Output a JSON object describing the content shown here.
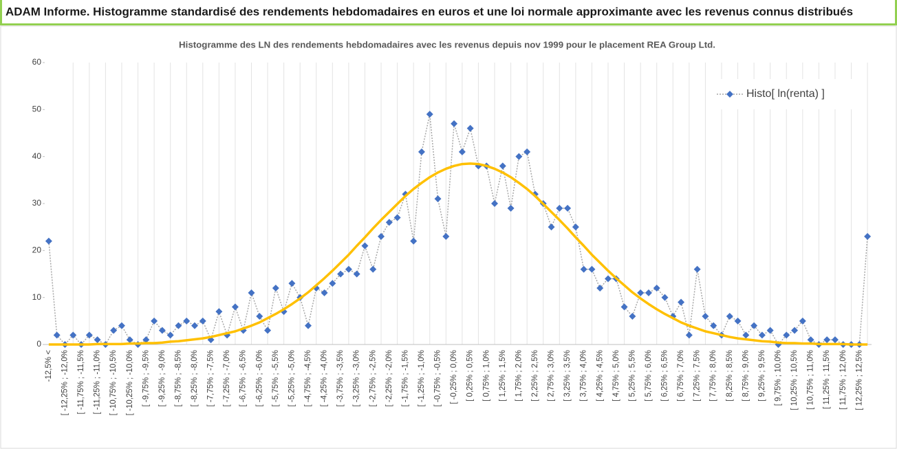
{
  "header": {
    "title": "ADAM Informe. Histogramme standardisé des rendements hebdomadaires en euros et une loi normale approximante avec les revenus connus distribués"
  },
  "chart_data": {
    "type": "line",
    "title": "Histogramme des LN des rendements hebdomadaires avec les revenus depuis nov 1999 pour le placement REA Group Ltd.",
    "categories": [
      "-12,5% <",
      null,
      "[ -12,25% ; -12,0%",
      null,
      "[ -11,75% ; -11,5%",
      null,
      "[ -11,25% ; -11,0%",
      null,
      "[ -10,75% ; -10,5%",
      null,
      "[ -10,25% ; -10,0%",
      null,
      "[ -9,75% ; -9,5%",
      null,
      "[ -9,25% ; -9,0%",
      null,
      "[ -8,75% ; -8,5%",
      null,
      "[ -8,25% ; -8,0%",
      null,
      "[ -7,75% ; -7,5%",
      null,
      "[ -7,25% ; -7,0%",
      null,
      "[ -6,75% ; -6,5%",
      null,
      "[ -6,25% ; -6,0%",
      null,
      "[ -5,75% ; -5,5%",
      null,
      "[ -5,25% ; -5,0%",
      null,
      "[ -4,75% ; -4,5%",
      null,
      "[ -4,25% ; -4,0%",
      null,
      "[ -3,75% ; -3,5%",
      null,
      "[ -3,25% ; -3,0%",
      null,
      "[ -2,75% ; -2,5%",
      null,
      "[ -2,25% ; -2,0%",
      null,
      "[ -1,75% ; -1,5%",
      null,
      "[ -1,25% ; -1,0%",
      null,
      "[ -0,75% ; -0,5%",
      null,
      "[ -0,25% ; 0,0%",
      null,
      "[ 0,25% ; 0,5%",
      null,
      "[ 0,75% ; 1,0%",
      null,
      "[ 1,25% ; 1,5%",
      null,
      "[ 1,75% ; 2,0%",
      null,
      "[ 2,25% ; 2,5%",
      null,
      "[ 2,75% ; 3,0%",
      null,
      "[ 3,25% ; 3,5%",
      null,
      "[ 3,75% ; 4,0%",
      null,
      "[ 4,25% ; 4,5%",
      null,
      "[ 4,75% ; 5,0%",
      null,
      "[ 5,25% ; 5,5%",
      null,
      "[ 5,75% ; 6,0%",
      null,
      "[ 6,25% ; 6,5%",
      null,
      "[ 6,75% ; 7,0%",
      null,
      "[ 7,25% ; 7,5%",
      null,
      "[ 7,75% ; 8,0%",
      null,
      "[ 8,25% ; 8,5%",
      null,
      "[ 8,75% ; 9,0%",
      null,
      "[ 9,25% ; 9,5%",
      null,
      "[ 9,75% ; 10,0%",
      null,
      "[ 10,25% ; 10,5%",
      null,
      "[ 10,75% ; 11,0%",
      null,
      "[ 11,25% ; 11,5%",
      null,
      "[ 11,75% ; 12,0%",
      null,
      "[ 12,25% ; 12,5%",
      null
    ],
    "series": [
      {
        "name": "Histo[ ln(renta) ]",
        "color": "#4472c4",
        "values": [
          22,
          2,
          0,
          2,
          0,
          2,
          1,
          0,
          3,
          4,
          1,
          0,
          1,
          5,
          3,
          2,
          4,
          5,
          4,
          5,
          1,
          7,
          2,
          8,
          3,
          11,
          6,
          3,
          12,
          7,
          13,
          10,
          4,
          12,
          11,
          13,
          15,
          16,
          15,
          21,
          16,
          23,
          26,
          27,
          32,
          22,
          41,
          49,
          31,
          23,
          47,
          41,
          46,
          38,
          38,
          30,
          38,
          29,
          40,
          41,
          32,
          30,
          25,
          29,
          29,
          25,
          16,
          16,
          12,
          14,
          14,
          8,
          6,
          11,
          11,
          12,
          10,
          6,
          9,
          2,
          16,
          6,
          4,
          2,
          6,
          5,
          2,
          4,
          2,
          3,
          0,
          2,
          3,
          5,
          1,
          0,
          1,
          1,
          0,
          0,
          0,
          23
        ]
      },
      {
        "color": "#ffc000",
        "values": [
          0,
          0,
          0,
          0,
          0,
          0,
          0.1,
          0.1,
          0.1,
          0.1,
          0.2,
          0.2,
          0.3,
          0.3,
          0.4,
          0.6,
          0.7,
          0.9,
          1.1,
          1.3,
          1.6,
          2.0,
          2.4,
          2.8,
          3.4,
          4.0,
          4.7,
          5.6,
          6.5,
          7.5,
          8.6,
          9.8,
          11.1,
          12.6,
          14.1,
          15.7,
          17.4,
          19.1,
          21.0,
          22.8,
          24.7,
          26.5,
          28.2,
          29.9,
          31.6,
          33.1,
          34.4,
          35.6,
          36.6,
          37.4,
          38.0,
          38.4,
          38.5,
          38.4,
          38.0,
          37.4,
          36.6,
          35.6,
          34.4,
          33.1,
          31.6,
          29.9,
          28.2,
          26.5,
          24.7,
          22.8,
          21.0,
          19.1,
          17.4,
          15.7,
          14.1,
          12.6,
          11.1,
          9.8,
          8.6,
          7.5,
          6.5,
          5.6,
          4.7,
          4.0,
          3.4,
          2.8,
          2.4,
          2.0,
          1.6,
          1.3,
          1.1,
          0.9,
          0.7,
          0.6,
          0.4,
          0.3,
          0.3,
          0.2,
          0.2,
          0.1,
          0.1,
          0.1,
          0.1,
          0,
          0,
          0
        ]
      }
    ],
    "ylim": [
      0,
      60
    ],
    "yticks": [
      0,
      10,
      20,
      30,
      40,
      50,
      60
    ],
    "legend": "top-right"
  }
}
